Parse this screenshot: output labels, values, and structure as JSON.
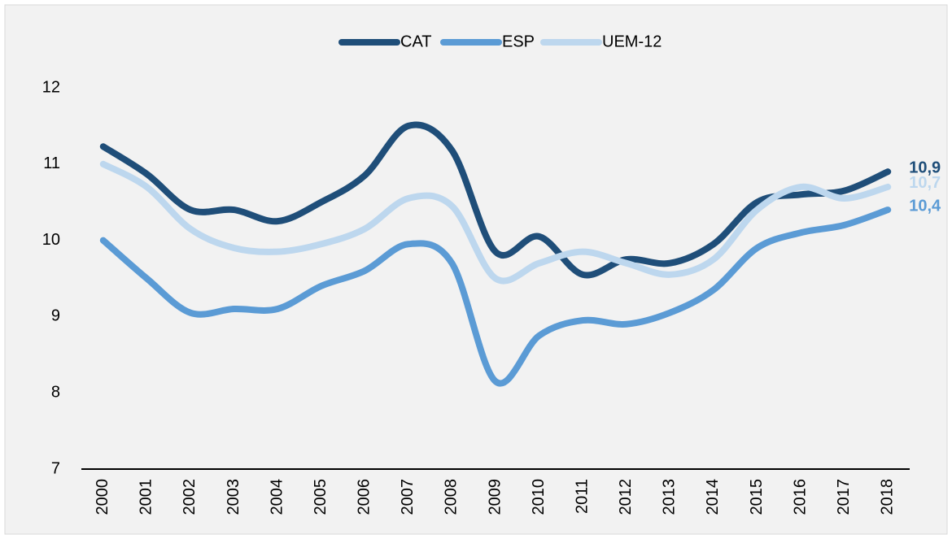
{
  "chart_data": {
    "type": "line",
    "categories": [
      "2000",
      "2001",
      "2002",
      "2003",
      "2004",
      "2005",
      "2006",
      "2007",
      "2008",
      "2009",
      "2010",
      "2011",
      "2012",
      "2013",
      "2014",
      "2015",
      "2016",
      "2017",
      "2018"
    ],
    "series": [
      {
        "name": "CAT",
        "color": "#1f4e79",
        "values": [
          11.23,
          10.87,
          10.4,
          10.4,
          10.25,
          10.5,
          10.85,
          11.5,
          11.18,
          9.85,
          10.05,
          9.55,
          9.75,
          9.7,
          9.95,
          10.5,
          10.6,
          10.65,
          10.9
        ],
        "value_labels": [
          null,
          null,
          null,
          null,
          null,
          null,
          null,
          null,
          null,
          null,
          null,
          null,
          null,
          null,
          null,
          null,
          null,
          null,
          "10,9"
        ]
      },
      {
        "name": "ESP",
        "color": "#5b9bd5",
        "values": [
          10.0,
          9.5,
          9.05,
          9.1,
          9.1,
          9.4,
          9.6,
          9.95,
          9.7,
          8.15,
          8.75,
          8.95,
          8.9,
          9.05,
          9.35,
          9.9,
          10.1,
          10.2,
          10.4
        ],
        "value_labels": [
          null,
          null,
          null,
          null,
          null,
          null,
          null,
          null,
          null,
          null,
          null,
          null,
          null,
          null,
          null,
          null,
          null,
          null,
          "10,4"
        ]
      },
      {
        "name": "UEM-12",
        "color": "#bdd7ee",
        "values": [
          11.0,
          10.7,
          10.15,
          9.9,
          9.85,
          9.95,
          10.15,
          10.55,
          10.45,
          9.5,
          9.7,
          9.85,
          9.7,
          9.55,
          9.75,
          10.4,
          10.7,
          10.55,
          10.7
        ],
        "value_labels": [
          null,
          null,
          null,
          null,
          null,
          null,
          null,
          null,
          null,
          null,
          null,
          null,
          null,
          null,
          null,
          null,
          null,
          null,
          "10,7"
        ]
      }
    ],
    "ylim": [
      7,
      12
    ],
    "yticks": [
      7,
      8,
      9,
      10,
      11,
      12
    ],
    "grid": false,
    "legend": "top"
  }
}
